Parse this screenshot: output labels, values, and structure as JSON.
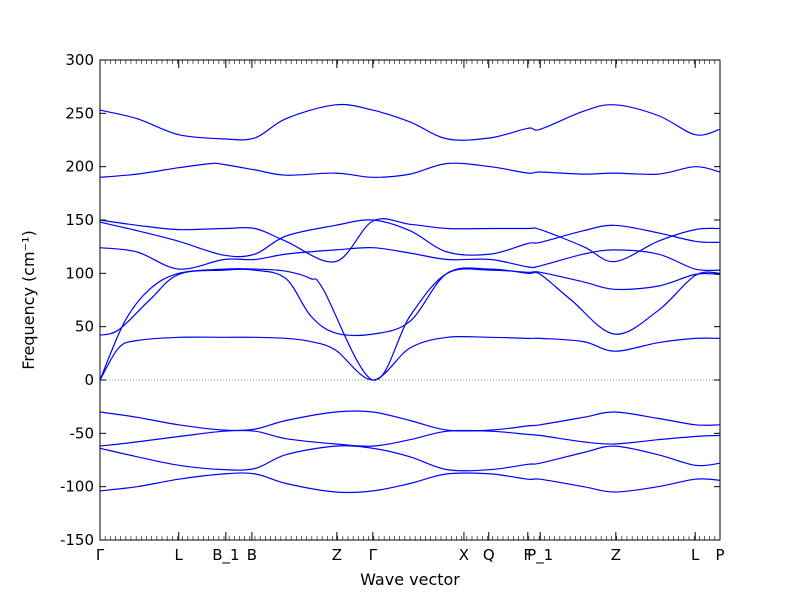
{
  "chart_data": {
    "type": "line",
    "xlabel": "Wave vector",
    "ylabel": "Frequency (cm⁻¹)",
    "ylim": [
      -150,
      300
    ],
    "xlim": [
      0,
      1
    ],
    "grid": false,
    "colors": {
      "bands": "#0000ff",
      "zero_line": "#888888",
      "axes": "#000000"
    },
    "yticks": [
      -150,
      -100,
      -50,
      0,
      50,
      100,
      150,
      200,
      250,
      300
    ],
    "xticks": [
      {
        "pos": 0.0,
        "label": "Γ"
      },
      {
        "pos": 0.127,
        "label": "L"
      },
      {
        "pos": 0.203,
        "label": "B_1"
      },
      {
        "pos": 0.245,
        "label": "B"
      },
      {
        "pos": 0.382,
        "label": "Z"
      },
      {
        "pos": 0.44,
        "label": "Γ"
      },
      {
        "pos": 0.587,
        "label": "X"
      },
      {
        "pos": 0.627,
        "label": "Q"
      },
      {
        "pos": 0.69,
        "label": "F"
      },
      {
        "pos": 0.71,
        "label": "P_1"
      },
      {
        "pos": 0.832,
        "label": "Z"
      },
      {
        "pos": 0.96,
        "label": "L"
      },
      {
        "pos": 1.0,
        "label": "P"
      }
    ],
    "zero_line": 0,
    "series": [
      {
        "x": [
          0,
          0.06,
          0.127,
          0.2,
          0.25,
          0.3,
          0.38,
          0.44,
          0.5,
          0.56,
          0.63,
          0.69,
          0.71,
          0.78,
          0.83,
          0.9,
          0.96,
          1.0
        ],
        "y": [
          253,
          245,
          230,
          226,
          227,
          245,
          258,
          253,
          242,
          226,
          227,
          236,
          235,
          252,
          258,
          248,
          230,
          235
        ]
      },
      {
        "x": [
          0,
          0.06,
          0.127,
          0.18,
          0.2,
          0.25,
          0.3,
          0.38,
          0.44,
          0.5,
          0.56,
          0.63,
          0.69,
          0.71,
          0.78,
          0.83,
          0.9,
          0.96,
          1.0
        ],
        "y": [
          190,
          193,
          199,
          203,
          202,
          197,
          192,
          194,
          190,
          193,
          203,
          200,
          194,
          195,
          193,
          194,
          193,
          200,
          195
        ]
      },
      {
        "x": [
          0,
          0.06,
          0.127,
          0.2,
          0.25,
          0.3,
          0.38,
          0.44,
          0.5,
          0.56,
          0.63,
          0.69,
          0.71,
          0.78,
          0.83,
          0.9,
          0.96,
          1.0
        ],
        "y": [
          150,
          145,
          141,
          142,
          142,
          130,
          111,
          149,
          146,
          142,
          142,
          142,
          141,
          125,
          111,
          130,
          141,
          142
        ]
      },
      {
        "x": [
          0,
          0.06,
          0.127,
          0.2,
          0.25,
          0.3,
          0.38,
          0.44,
          0.5,
          0.56,
          0.63,
          0.69,
          0.71,
          0.78,
          0.83,
          0.9,
          0.96,
          1.0
        ],
        "y": [
          148,
          140,
          130,
          117,
          118,
          135,
          145,
          150,
          140,
          120,
          118,
          128,
          129,
          140,
          145,
          138,
          130,
          129
        ]
      },
      {
        "x": [
          0,
          0.06,
          0.127,
          0.2,
          0.25,
          0.3,
          0.38,
          0.44,
          0.5,
          0.56,
          0.63,
          0.69,
          0.71,
          0.78,
          0.83,
          0.9,
          0.96,
          1.0
        ],
        "y": [
          124,
          120,
          104,
          113,
          113,
          118,
          122,
          124,
          119,
          113,
          113,
          106,
          107,
          118,
          122,
          118,
          104,
          103
        ]
      },
      {
        "x": [
          0,
          0.04,
          0.08,
          0.127,
          0.2,
          0.25,
          0.3,
          0.34,
          0.36,
          0.44,
          0.5,
          0.56,
          0.63,
          0.69,
          0.71,
          0.78,
          0.83,
          0.9,
          0.96,
          1.0
        ],
        "y": [
          0,
          55,
          85,
          100,
          104,
          104,
          102,
          95,
          85,
          0,
          60,
          100,
          103,
          101,
          101,
          92,
          85,
          88,
          99,
          99
        ]
      },
      {
        "x": [
          0,
          0.03,
          0.08,
          0.127,
          0.2,
          0.25,
          0.3,
          0.34,
          0.38,
          0.44,
          0.5,
          0.56,
          0.63,
          0.69,
          0.71,
          0.76,
          0.83,
          0.9,
          0.96,
          1.0
        ],
        "y": [
          42,
          47,
          75,
          99,
          103,
          103,
          95,
          60,
          44,
          43,
          55,
          100,
          104,
          100,
          99,
          75,
          43,
          65,
          98,
          100
        ]
      },
      {
        "x": [
          0,
          0.03,
          0.06,
          0.127,
          0.2,
          0.25,
          0.3,
          0.34,
          0.38,
          0.44,
          0.5,
          0.56,
          0.63,
          0.69,
          0.71,
          0.78,
          0.83,
          0.9,
          0.96,
          1.0
        ],
        "y": [
          0,
          30,
          37,
          40,
          40,
          40,
          39,
          36,
          28,
          0,
          30,
          40,
          40,
          39,
          39,
          36,
          27,
          35,
          39,
          39
        ]
      },
      {
        "x": [
          0,
          0.06,
          0.127,
          0.2,
          0.25,
          0.3,
          0.38,
          0.44,
          0.5,
          0.56,
          0.63,
          0.69,
          0.71,
          0.78,
          0.83,
          0.9,
          0.96,
          1.0
        ],
        "y": [
          -30,
          -35,
          -42,
          -47,
          -46,
          -38,
          -30,
          -30,
          -38,
          -47,
          -47,
          -43,
          -42,
          -35,
          -30,
          -36,
          -42,
          -42
        ]
      },
      {
        "x": [
          0,
          0.06,
          0.127,
          0.2,
          0.25,
          0.3,
          0.38,
          0.44,
          0.5,
          0.56,
          0.63,
          0.69,
          0.71,
          0.78,
          0.83,
          0.9,
          0.96,
          1.0
        ],
        "y": [
          -62,
          -58,
          -53,
          -48,
          -48,
          -55,
          -60,
          -62,
          -56,
          -48,
          -48,
          -51,
          -52,
          -58,
          -60,
          -56,
          -53,
          -52
        ]
      },
      {
        "x": [
          0,
          0.06,
          0.127,
          0.2,
          0.25,
          0.3,
          0.38,
          0.44,
          0.5,
          0.56,
          0.63,
          0.69,
          0.71,
          0.78,
          0.83,
          0.9,
          0.96,
          1.0
        ],
        "y": [
          -64,
          -72,
          -80,
          -84,
          -83,
          -70,
          -62,
          -64,
          -72,
          -84,
          -84,
          -79,
          -78,
          -68,
          -62,
          -70,
          -80,
          -78
        ]
      },
      {
        "x": [
          0,
          0.06,
          0.127,
          0.2,
          0.25,
          0.3,
          0.38,
          0.44,
          0.5,
          0.56,
          0.63,
          0.69,
          0.71,
          0.78,
          0.83,
          0.9,
          0.96,
          1.0
        ],
        "y": [
          -104,
          -100,
          -93,
          -88,
          -88,
          -97,
          -105,
          -104,
          -97,
          -88,
          -88,
          -93,
          -93,
          -100,
          -105,
          -100,
          -93,
          -94
        ]
      }
    ]
  }
}
